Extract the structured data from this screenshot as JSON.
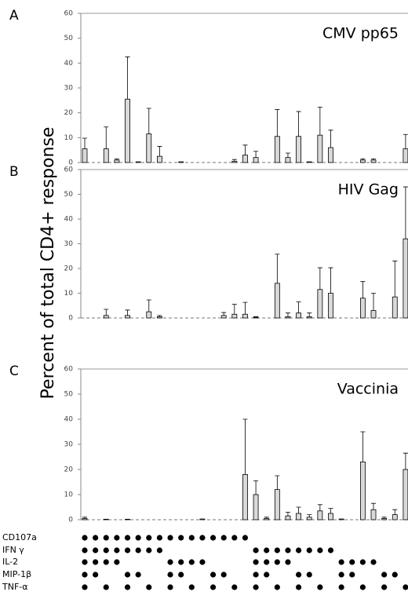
{
  "y_label": "Percent of total CD4+ response",
  "chart_data": [
    {
      "type": "bar",
      "panel": "A",
      "title": "CMV pp65",
      "ylim": [
        0,
        60
      ],
      "yticks": [
        0,
        10,
        20,
        30,
        40,
        50,
        60
      ],
      "series": [
        {
          "color": "#d9d9d9",
          "values": [
            5.5,
            0,
            5.5,
            1,
            25.5,
            0.3,
            11.5,
            2.5,
            0,
            0.3,
            0,
            0,
            0,
            0,
            0.5,
            3,
            2,
            0,
            10.5,
            2,
            10.5,
            0.3,
            11,
            6,
            0,
            0,
            1,
            1,
            0,
            0,
            5.5
          ],
          "errors": [
            4.3,
            null,
            8.8,
            0.5,
            17,
            null,
            10.3,
            4,
            null,
            null,
            null,
            null,
            null,
            null,
            0.7,
            4,
            2.5,
            null,
            10.8,
            1.8,
            10,
            null,
            11.3,
            7,
            null,
            null,
            0.5,
            0.5,
            null,
            null,
            5.8
          ]
        }
      ]
    },
    {
      "type": "bar",
      "panel": "B",
      "title": "HIV Gag",
      "ylim": [
        0,
        60
      ],
      "yticks": [
        0,
        10,
        20,
        30,
        40,
        50,
        60
      ],
      "series": [
        {
          "color": "#d9d9d9",
          "values": [
            0,
            0,
            1,
            0,
            1,
            0,
            2.5,
            0.5,
            0,
            0,
            0,
            0,
            0,
            1,
            1.5,
            1.5,
            0.3,
            0,
            14,
            0.5,
            2,
            0.5,
            11.5,
            10,
            0,
            0,
            8,
            3,
            0,
            8.5,
            32
          ],
          "errors": [
            null,
            null,
            2.5,
            null,
            2.2,
            null,
            4.8,
            0.5,
            null,
            null,
            null,
            null,
            null,
            1.2,
            4,
            4.8,
            0.2,
            null,
            11.8,
            1.5,
            4.5,
            1.5,
            8.8,
            10.3,
            null,
            null,
            6.7,
            7,
            null,
            14.5,
            21
          ]
        }
      ]
    },
    {
      "type": "bar",
      "panel": "C",
      "title": "Vaccinia",
      "ylim": [
        0,
        60
      ],
      "yticks": [
        0,
        10,
        20,
        30,
        40,
        50,
        60
      ],
      "series": [
        {
          "color": "#d9d9d9",
          "values": [
            0.5,
            0,
            0.2,
            0,
            0.2,
            0,
            0,
            0,
            0,
            0,
            0,
            0.3,
            0,
            0,
            0,
            18,
            10,
            0.5,
            12,
            1.5,
            2.5,
            1,
            3.5,
            2.5,
            0.3,
            0,
            23,
            4,
            0.5,
            2,
            20
          ],
          "errors": [
            0.5,
            null,
            null,
            null,
            null,
            null,
            null,
            null,
            null,
            null,
            null,
            null,
            null,
            null,
            null,
            22,
            5.5,
            0.5,
            5.5,
            1.5,
            2.5,
            1,
            2.5,
            2,
            null,
            null,
            12,
            2.5,
            0.5,
            2,
            6.5
          ]
        }
      ]
    }
  ],
  "combinations": {
    "rows": [
      {
        "label": "CD107a",
        "on": [
          1,
          1,
          1,
          1,
          1,
          1,
          1,
          1,
          1,
          1,
          1,
          1,
          1,
          1,
          1,
          1,
          0,
          0,
          0,
          0,
          0,
          0,
          0,
          0,
          0,
          0,
          0,
          0,
          0,
          0,
          0
        ]
      },
      {
        "label": "IFN γ",
        "on": [
          1,
          1,
          1,
          1,
          1,
          1,
          1,
          1,
          0,
          0,
          0,
          0,
          0,
          0,
          0,
          0,
          1,
          1,
          1,
          1,
          1,
          1,
          1,
          1,
          0,
          0,
          0,
          0,
          0,
          0,
          0
        ]
      },
      {
        "label": "IL-2",
        "on": [
          1,
          1,
          1,
          1,
          0,
          0,
          0,
          0,
          1,
          1,
          1,
          1,
          0,
          0,
          0,
          0,
          1,
          1,
          1,
          1,
          0,
          0,
          0,
          0,
          1,
          1,
          1,
          1,
          0,
          0,
          0
        ]
      },
      {
        "label": "MIP-1β",
        "on": [
          1,
          1,
          0,
          0,
          1,
          1,
          0,
          0,
          1,
          1,
          0,
          0,
          1,
          1,
          0,
          0,
          1,
          1,
          0,
          0,
          1,
          1,
          0,
          0,
          1,
          1,
          0,
          0,
          1,
          1,
          0
        ]
      },
      {
        "label": "TNF-α",
        "on": [
          1,
          0,
          1,
          0,
          1,
          0,
          1,
          0,
          1,
          0,
          1,
          0,
          1,
          0,
          1,
          0,
          1,
          0,
          1,
          0,
          1,
          0,
          1,
          0,
          1,
          0,
          1,
          0,
          1,
          0,
          1
        ]
      }
    ]
  }
}
